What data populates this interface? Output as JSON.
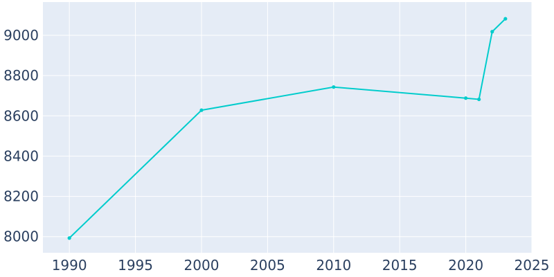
{
  "chart_data": {
    "type": "line",
    "title": "",
    "xlabel": "",
    "ylabel": "",
    "x": [
      1990,
      2000,
      2010,
      2020,
      2021,
      2022,
      2023
    ],
    "series": [
      {
        "values": [
          7993,
          8628,
          8743,
          8688,
          8682,
          9018,
          9082
        ]
      }
    ],
    "xlim": [
      1988,
      2025
    ],
    "ylim": [
      7920,
      9165
    ],
    "x_ticks": [
      1990,
      1995,
      2000,
      2005,
      2010,
      2015,
      2020,
      2025
    ],
    "y_ticks": [
      8000,
      8200,
      8400,
      8600,
      8800,
      9000
    ],
    "x_tick_labels": [
      "1990",
      "1995",
      "2000",
      "2005",
      "2010",
      "2015",
      "2020",
      "2025"
    ],
    "y_tick_labels": [
      "8000",
      "8200",
      "8400",
      "8600",
      "8800",
      "9000"
    ],
    "grid": true,
    "colors": {
      "line": "#00cccc",
      "plot_background": "#e5ecf6",
      "grid": "#ffffff",
      "text": "#2a3f5f"
    }
  }
}
